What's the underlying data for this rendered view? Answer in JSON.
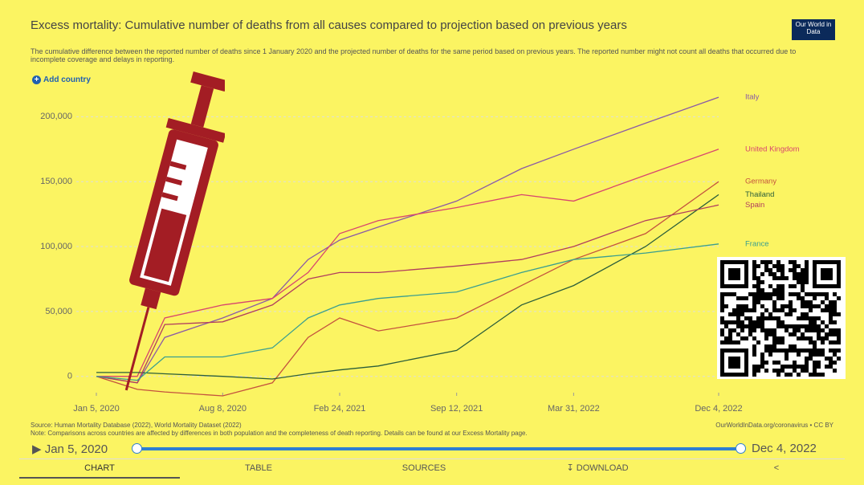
{
  "header": {
    "title": "Excess mortality: Cumulative number of deaths from all causes compared to projection based on previous years",
    "subtitle": "The cumulative difference between the reported number of deaths since 1 January 2020 and the projected number of deaths for the same period based on previous years. The reported number might not count all deaths that occurred due to incomplete coverage and delays in reporting.",
    "logo": "Our World in Data",
    "add_country": "Add country"
  },
  "chart_data": {
    "type": "line",
    "x": [
      "2020-01-05",
      "2020-03-15",
      "2020-05-01",
      "2020-08-08",
      "2020-11-01",
      "2021-01-01",
      "2021-02-24",
      "2021-05-01",
      "2021-09-12",
      "2022-01-01",
      "2022-03-31",
      "2022-08-01",
      "2022-12-04"
    ],
    "series": [
      {
        "name": "Italy",
        "color": "#8a5aa6",
        "values": [
          0,
          -5000,
          30000,
          45000,
          60000,
          90000,
          105000,
          115000,
          135000,
          160000,
          175000,
          195000,
          215000
        ]
      },
      {
        "name": "United Kingdom",
        "color": "#d8456e",
        "values": [
          0,
          0,
          45000,
          55000,
          60000,
          80000,
          110000,
          120000,
          130000,
          140000,
          135000,
          155000,
          175000
        ]
      },
      {
        "name": "Germany",
        "color": "#c4523e",
        "values": [
          0,
          -10000,
          -12000,
          -15000,
          -5000,
          30000,
          45000,
          35000,
          45000,
          70000,
          90000,
          110000,
          150000
        ]
      },
      {
        "name": "Thailand",
        "color": "#2b5e3a",
        "values": [
          3000,
          3000,
          2000,
          0,
          -2000,
          2000,
          5000,
          8000,
          20000,
          55000,
          70000,
          100000,
          140000
        ]
      },
      {
        "name": "Spain",
        "color": "#b13d5e",
        "values": [
          0,
          -5000,
          40000,
          42000,
          55000,
          75000,
          80000,
          80000,
          85000,
          90000,
          100000,
          120000,
          132000
        ]
      },
      {
        "name": "France",
        "color": "#3a9e8f",
        "values": [
          0,
          -3000,
          15000,
          15000,
          22000,
          45000,
          55000,
          60000,
          65000,
          80000,
          90000,
          95000,
          102000
        ]
      }
    ],
    "xlim": [
      "2020-01-05",
      "2022-12-04"
    ],
    "xticks": [
      {
        "value": "2020-01-05",
        "label": "Jan 5, 2020"
      },
      {
        "value": "2020-08-08",
        "label": "Aug 8, 2020"
      },
      {
        "value": "2021-02-24",
        "label": "Feb 24, 2021"
      },
      {
        "value": "2021-09-12",
        "label": "Sep 12, 2021"
      },
      {
        "value": "2022-03-31",
        "label": "Mar 31, 2022"
      },
      {
        "value": "2022-12-04",
        "label": "Dec 4, 2022"
      }
    ],
    "ylim": [
      -15000,
      220000
    ],
    "yticks": [
      0,
      {
        "value": 50000,
        "label": "50,000"
      },
      {
        "value": 100000,
        "label": "100,000"
      },
      {
        "value": 150000,
        "label": "150,000"
      },
      {
        "value": 200000,
        "label": "200,000"
      }
    ],
    "grid": true
  },
  "footer": {
    "source": "Source: Human Mortality Database (2022), World Mortality Dataset (2022)",
    "credit": "OurWorldInData.org/coronavirus • CC BY",
    "note": "Note: Comparisons across countries are affected by differences in both population and the completeness of death reporting. Details can be found at our Excess Mortality page."
  },
  "timeline": {
    "start": "Jan 5, 2020",
    "end": "Dec 4, 2022"
  },
  "tabs": [
    "CHART",
    "TABLE",
    "SOURCES",
    "DOWNLOAD"
  ]
}
